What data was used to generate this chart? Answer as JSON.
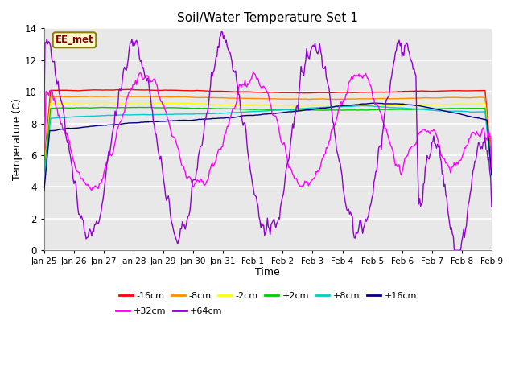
{
  "title": "Soil/Water Temperature Set 1",
  "xlabel": "Time",
  "ylabel": "Temperature (C)",
  "ylim": [
    0,
    14
  ],
  "yticks": [
    0,
    2,
    4,
    6,
    8,
    10,
    12,
    14
  ],
  "x_labels": [
    "Jan 25",
    "Jan 26",
    "Jan 27",
    "Jan 28",
    "Jan 29",
    "Jan 30",
    "Jan 31",
    "Feb 1",
    "Feb 2",
    "Feb 3",
    "Feb 4",
    "Feb 5",
    "Feb 6",
    "Feb 7",
    "Feb 8",
    "Feb 9"
  ],
  "annotation_text": "EE_met",
  "annotation_color": "#8B0000",
  "annotation_bg": "#FFFACD",
  "annotation_border": "#8B8000",
  "series": [
    {
      "label": "-16cm",
      "color": "#FF0000"
    },
    {
      "label": "-8cm",
      "color": "#FF8C00"
    },
    {
      "label": "-2cm",
      "color": "#FFFF00"
    },
    {
      "label": "+2cm",
      "color": "#00CC00"
    },
    {
      "label": "+8cm",
      "color": "#00CCCC"
    },
    {
      "label": "+16cm",
      "color": "#000080"
    },
    {
      "label": "+32cm",
      "color": "#FF00FF"
    },
    {
      "label": "+64cm",
      "color": "#9400D3"
    }
  ],
  "plot_bg": "#E8E8E8",
  "grid_color": "#FFFFFF",
  "n_points": 480
}
